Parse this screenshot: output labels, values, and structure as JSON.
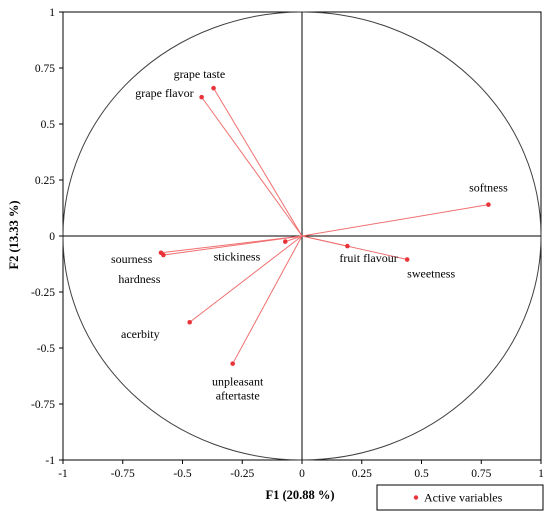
{
  "chart_data": {
    "type": "scatter",
    "subtype": "pca-correlation-circle",
    "xlabel": "F1 (20.88 %)",
    "ylabel": "F2 (13.33 %)",
    "xlim": [
      -1,
      1
    ],
    "ylim": [
      -1,
      1
    ],
    "x_ticks": [
      "-1",
      "-0.75",
      "-0.5",
      "-0.25",
      "0",
      "0.25",
      "0.5",
      "0.75",
      "1"
    ],
    "y_ticks": [
      "1",
      "0.75",
      "0.5",
      "0.25",
      "0",
      "-0.25",
      "-0.5",
      "-0.75",
      "-1"
    ],
    "grid": false,
    "unit_circle": true,
    "legend": {
      "position": "bottom-right",
      "entries": [
        "Active variables"
      ]
    },
    "colors": {
      "points": "#e8333a",
      "vectors": "#f07070",
      "circle": "#404040",
      "axes": "#000000"
    },
    "series": [
      {
        "name": "Active variables",
        "points": [
          {
            "label": "grape taste",
            "x": -0.37,
            "y": 0.66
          },
          {
            "label": "grape flavor",
            "x": -0.42,
            "y": 0.62
          },
          {
            "label": "softness",
            "x": 0.78,
            "y": 0.14
          },
          {
            "label": "sourness",
            "x": -0.59,
            "y": -0.075
          },
          {
            "label": "hardness",
            "x": -0.58,
            "y": -0.085
          },
          {
            "label": "stickiness",
            "x": -0.07,
            "y": -0.025
          },
          {
            "label": "fruit flavour",
            "x": 0.19,
            "y": -0.045
          },
          {
            "label": "sweetness",
            "x": 0.44,
            "y": -0.105
          },
          {
            "label": "acerbity",
            "x": -0.47,
            "y": -0.385
          },
          {
            "label": "unpleasant aftertaste",
            "x": -0.29,
            "y": -0.57
          }
        ]
      }
    ]
  }
}
